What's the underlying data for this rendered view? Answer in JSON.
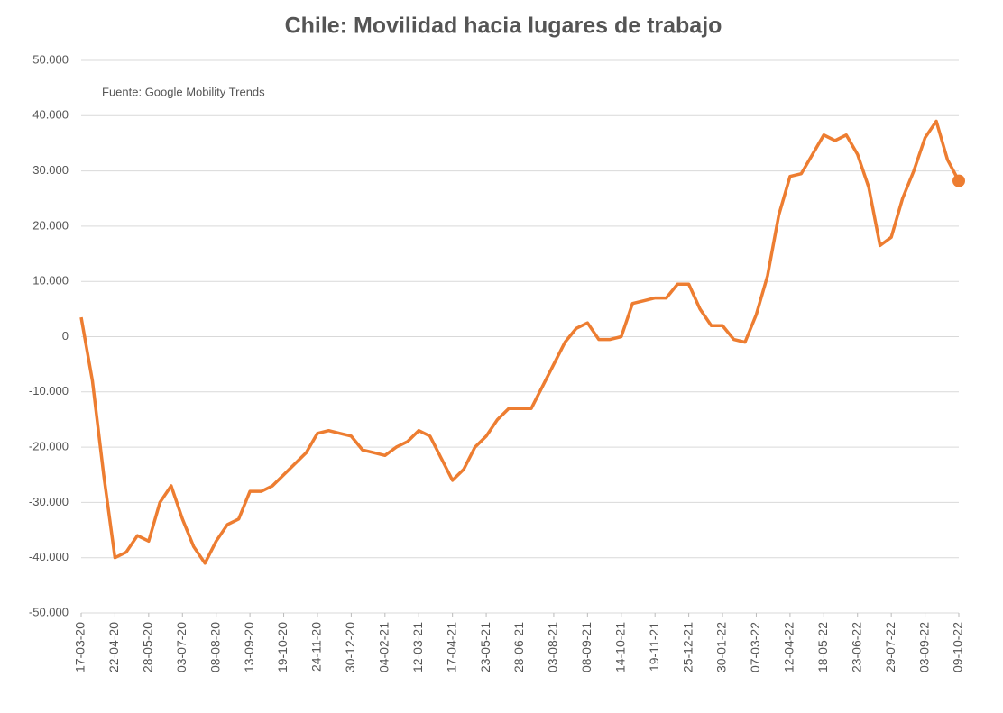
{
  "chart_data": {
    "type": "line",
    "title": "Chile: Movilidad hacia lugares de trabajo",
    "annotation": "Fuente: Google Mobility Trends",
    "x": [
      "17-03-20",
      "29-03-20",
      "10-04-20",
      "22-04-20",
      "04-05-20",
      "16-05-20",
      "28-05-20",
      "09-06-20",
      "21-06-20",
      "03-07-20",
      "15-07-20",
      "27-07-20",
      "08-08-20",
      "20-08-20",
      "01-09-20",
      "13-09-20",
      "25-09-20",
      "07-10-20",
      "19-10-20",
      "31-10-20",
      "12-11-20",
      "24-11-20",
      "06-12-20",
      "18-12-20",
      "30-12-20",
      "11-01-21",
      "23-01-21",
      "04-02-21",
      "16-02-21",
      "28-02-21",
      "12-03-21",
      "24-03-21",
      "05-04-21",
      "17-04-21",
      "29-04-21",
      "11-05-21",
      "23-05-21",
      "04-06-21",
      "16-06-21",
      "28-06-21",
      "10-07-21",
      "22-07-21",
      "03-08-21",
      "15-08-21",
      "27-08-21",
      "08-09-21",
      "20-09-21",
      "02-10-21",
      "14-10-21",
      "26-10-21",
      "07-11-21",
      "19-11-21",
      "01-12-21",
      "13-12-21",
      "25-12-21",
      "06-01-22",
      "18-01-22",
      "30-01-22",
      "11-02-22",
      "23-02-22",
      "07-03-22",
      "19-03-22",
      "31-03-22",
      "12-04-22",
      "24-04-22",
      "06-05-22",
      "18-05-22",
      "30-05-22",
      "11-06-22",
      "23-06-22",
      "05-07-22",
      "17-07-22",
      "29-07-22",
      "10-08-22",
      "22-08-22",
      "03-09-22",
      "15-09-22",
      "27-09-22",
      "09-10-22"
    ],
    "series": [
      {
        "name": "Lugares de trabajo",
        "color": "#ed7d31",
        "values": [
          3.5,
          -8,
          -25,
          -40,
          -39,
          -36,
          -37,
          -30,
          -27,
          -33,
          -38,
          -41,
          -37,
          -34,
          -33,
          -28,
          -28,
          -27,
          -25,
          -23,
          -21,
          -17.5,
          -17,
          -17.5,
          -18,
          -20.5,
          -21,
          -21.5,
          -20,
          -19,
          -17,
          -18,
          -22,
          -26,
          -24,
          -20,
          -18,
          -15,
          -13,
          -13,
          -13,
          -9,
          -5,
          -1,
          1.5,
          2.5,
          -0.5,
          -0.5,
          0,
          6,
          6.5,
          7,
          7,
          9.5,
          9.5,
          5,
          2,
          2,
          -0.5,
          -1,
          4,
          11,
          22,
          29,
          29.5,
          33,
          36.5,
          35.5,
          36.5,
          33,
          27,
          16.5,
          18,
          25,
          30,
          36,
          39,
          32,
          28.2
        ]
      }
    ],
    "xlim": [
      "17-03-20",
      "09-10-22"
    ],
    "xticks": [
      "17-03-20",
      "22-04-20",
      "28-05-20",
      "03-07-20",
      "08-08-20",
      "13-09-20",
      "19-10-20",
      "24-11-20",
      "30-12-20",
      "04-02-21",
      "12-03-21",
      "17-04-21",
      "23-05-21",
      "28-06-21",
      "03-08-21",
      "08-09-21",
      "14-10-21",
      "19-11-21",
      "25-12-21",
      "30-01-22",
      "07-03-22",
      "12-04-22",
      "18-05-22",
      "23-06-22",
      "29-07-22",
      "03-09-22",
      "09-10-22"
    ],
    "ylim": [
      -50,
      50
    ],
    "yticks": [
      {
        "value": -50,
        "label": "-50.000"
      },
      {
        "value": -40,
        "label": "-40.000"
      },
      {
        "value": -30,
        "label": "-30.000"
      },
      {
        "value": -20,
        "label": "-20.000"
      },
      {
        "value": -10,
        "label": "-10.000"
      },
      0,
      {
        "value": 10,
        "label": "10.000"
      },
      {
        "value": 20,
        "label": "20.000"
      },
      {
        "value": 30,
        "label": "30.000"
      },
      {
        "value": 40,
        "label": "40.000"
      },
      {
        "value": 50,
        "label": "50.000"
      }
    ],
    "grid": true
  }
}
